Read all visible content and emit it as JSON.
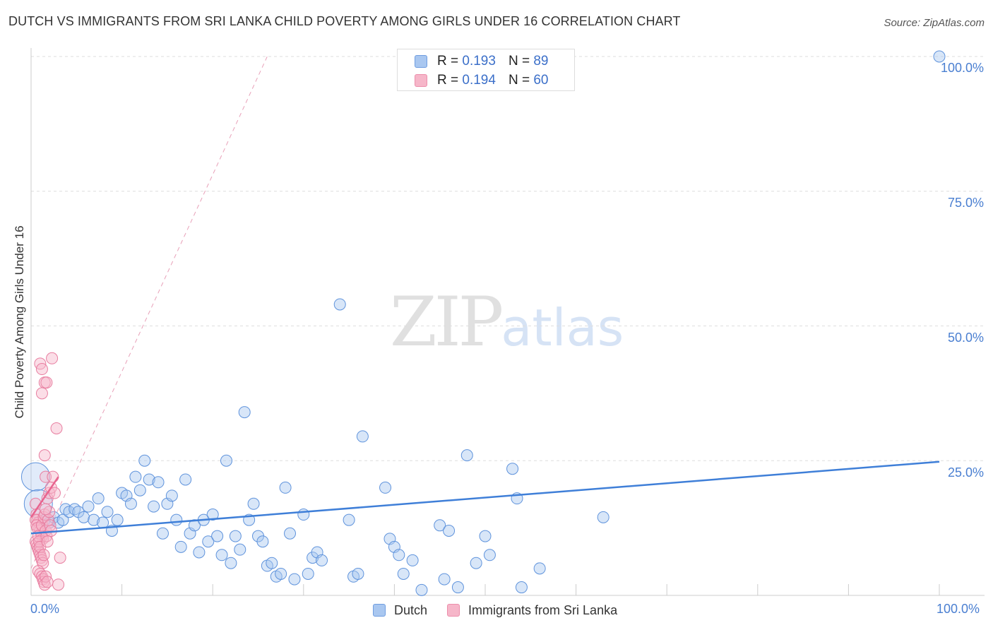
{
  "title": "DUTCH VS IMMIGRANTS FROM SRI LANKA CHILD POVERTY AMONG GIRLS UNDER 16 CORRELATION CHART",
  "source": "Source: ZipAtlas.com",
  "watermark": {
    "zip": "ZIP",
    "atlas": "atlas"
  },
  "colors": {
    "dutch": "#3f7fd8",
    "dutch_fill": "#a9c7f0",
    "srilanka": "#e8648f",
    "srilanka_fill": "#f6b6c9",
    "tick": "#4a7fd1"
  },
  "legend": {
    "dutch": {
      "r_label": "R = ",
      "r_value": "0.193",
      "n_label": "N = ",
      "n_value": "89"
    },
    "srilanka": {
      "r_label": "R = ",
      "r_value": "0.194",
      "n_label": "N = ",
      "n_value": "60"
    }
  },
  "chart_data": {
    "type": "scatter",
    "title": "DUTCH VS IMMIGRANTS FROM SRI LANKA CHILD POVERTY AMONG GIRLS UNDER 16 CORRELATION CHART",
    "xlabel": "",
    "ylabel": "Child Poverty Among Girls Under 16",
    "xlim": [
      0,
      100
    ],
    "ylim": [
      0,
      100
    ],
    "x_tick_labels": [
      "0.0%",
      "100.0%"
    ],
    "y_tick_labels": [
      "100.0%",
      "75.0%",
      "50.0%",
      "25.0%"
    ],
    "y_tick_values": [
      100,
      75,
      50,
      25
    ],
    "grid": true,
    "legend_position": "bottom",
    "series": [
      {
        "name": "Dutch",
        "trend": {
          "x": [
            0,
            100
          ],
          "y": [
            11.5,
            24.8
          ]
        },
        "points": [
          [
            0.5,
            22
          ],
          [
            0.8,
            17
          ],
          [
            1.5,
            14
          ],
          [
            2,
            13.5
          ],
          [
            2.5,
            14.5
          ],
          [
            3,
            13.5
          ],
          [
            3.5,
            14
          ],
          [
            3.8,
            16
          ],
          [
            4.2,
            15.5
          ],
          [
            4.8,
            16
          ],
          [
            5.2,
            15.5
          ],
          [
            5.8,
            14.5
          ],
          [
            6.3,
            16.5
          ],
          [
            6.9,
            14
          ],
          [
            7.4,
            18
          ],
          [
            7.9,
            13.5
          ],
          [
            8.4,
            15.5
          ],
          [
            8.9,
            12
          ],
          [
            9.5,
            14
          ],
          [
            10,
            19
          ],
          [
            10.5,
            18.5
          ],
          [
            11,
            17
          ],
          [
            11.5,
            22
          ],
          [
            12,
            19.5
          ],
          [
            12.5,
            25
          ],
          [
            13,
            21.5
          ],
          [
            13.5,
            16.5
          ],
          [
            14,
            21
          ],
          [
            14.5,
            11.5
          ],
          [
            15,
            17
          ],
          [
            15.5,
            18.5
          ],
          [
            16,
            14
          ],
          [
            16.5,
            9
          ],
          [
            17,
            21.5
          ],
          [
            17.5,
            11.5
          ],
          [
            18,
            13
          ],
          [
            18.5,
            8
          ],
          [
            19,
            14
          ],
          [
            19.5,
            10
          ],
          [
            20,
            15
          ],
          [
            20.5,
            11
          ],
          [
            21,
            7.5
          ],
          [
            21.5,
            25
          ],
          [
            22,
            6
          ],
          [
            22.5,
            11
          ],
          [
            23,
            8.5
          ],
          [
            23.5,
            34
          ],
          [
            24,
            14
          ],
          [
            24.5,
            17
          ],
          [
            25,
            11
          ],
          [
            25.5,
            10
          ],
          [
            26,
            5.5
          ],
          [
            26.5,
            6
          ],
          [
            27,
            3.5
          ],
          [
            27.5,
            4
          ],
          [
            28,
            20
          ],
          [
            28.5,
            11.5
          ],
          [
            29,
            3
          ],
          [
            30,
            15
          ],
          [
            30.5,
            4
          ],
          [
            31,
            7
          ],
          [
            31.5,
            8
          ],
          [
            32,
            6.5
          ],
          [
            34,
            54
          ],
          [
            35,
            14
          ],
          [
            35.5,
            3.5
          ],
          [
            36,
            4
          ],
          [
            36.5,
            29.5
          ],
          [
            39,
            20
          ],
          [
            39.5,
            10.5
          ],
          [
            40,
            9
          ],
          [
            40.5,
            7.5
          ],
          [
            41,
            4
          ],
          [
            42,
            6.5
          ],
          [
            43,
            1
          ],
          [
            45,
            13
          ],
          [
            45.5,
            3
          ],
          [
            46,
            12
          ],
          [
            47,
            1.5
          ],
          [
            48,
            26
          ],
          [
            49,
            6
          ],
          [
            50,
            11
          ],
          [
            50.5,
            7.5
          ],
          [
            53,
            23.5
          ],
          [
            53.5,
            18
          ],
          [
            54,
            1.5
          ],
          [
            56,
            5
          ],
          [
            63,
            14.5
          ],
          [
            100,
            100
          ]
        ]
      },
      {
        "name": "Immigrants from Sri Lanka",
        "trend": {
          "x": [
            0,
            3
          ],
          "y": [
            14.5,
            22
          ]
        },
        "extrapolation": {
          "x": [
            0,
            26
          ],
          "y": [
            5,
            100
          ]
        },
        "points": [
          [
            0.5,
            17
          ],
          [
            0.6,
            15
          ],
          [
            0.7,
            14
          ],
          [
            0.8,
            13.5
          ],
          [
            0.9,
            12.5
          ],
          [
            1,
            12
          ],
          [
            1.1,
            11.5
          ],
          [
            1.2,
            11
          ],
          [
            1.3,
            10.5
          ],
          [
            0.5,
            10
          ],
          [
            0.6,
            9.5
          ],
          [
            0.7,
            9
          ],
          [
            0.8,
            8.5
          ],
          [
            0.9,
            8
          ],
          [
            1,
            7.5
          ],
          [
            1.1,
            7
          ],
          [
            1.2,
            6.5
          ],
          [
            1.3,
            6
          ],
          [
            0.5,
            14
          ],
          [
            0.6,
            13
          ],
          [
            0.7,
            12.5
          ],
          [
            0.8,
            11
          ],
          [
            0.9,
            10
          ],
          [
            1,
            9
          ],
          [
            1.2,
            13
          ],
          [
            1.4,
            14.5
          ],
          [
            1.5,
            15
          ],
          [
            1.6,
            12
          ],
          [
            1.7,
            11
          ],
          [
            1.8,
            10
          ],
          [
            1.9,
            14
          ],
          [
            2,
            15.5
          ],
          [
            2.1,
            13
          ],
          [
            2.2,
            12
          ],
          [
            1.6,
            16
          ],
          [
            1.8,
            18
          ],
          [
            2,
            19
          ],
          [
            2.2,
            20
          ],
          [
            1.6,
            22
          ],
          [
            2.4,
            22
          ],
          [
            2.6,
            19
          ],
          [
            1.5,
            26
          ],
          [
            2.8,
            31
          ],
          [
            1.2,
            37.5
          ],
          [
            1.5,
            39.5
          ],
          [
            1.7,
            39.5
          ],
          [
            1,
            43
          ],
          [
            2.3,
            44
          ],
          [
            1.2,
            42
          ],
          [
            0.8,
            4.5
          ],
          [
            1,
            4
          ],
          [
            1.2,
            3.5
          ],
          [
            1.3,
            3
          ],
          [
            1.4,
            2.5
          ],
          [
            1.5,
            2
          ],
          [
            1.6,
            3.5
          ],
          [
            1.8,
            2.5
          ],
          [
            3,
            2
          ],
          [
            3.2,
            7
          ],
          [
            1.4,
            7.5
          ]
        ]
      }
    ]
  }
}
